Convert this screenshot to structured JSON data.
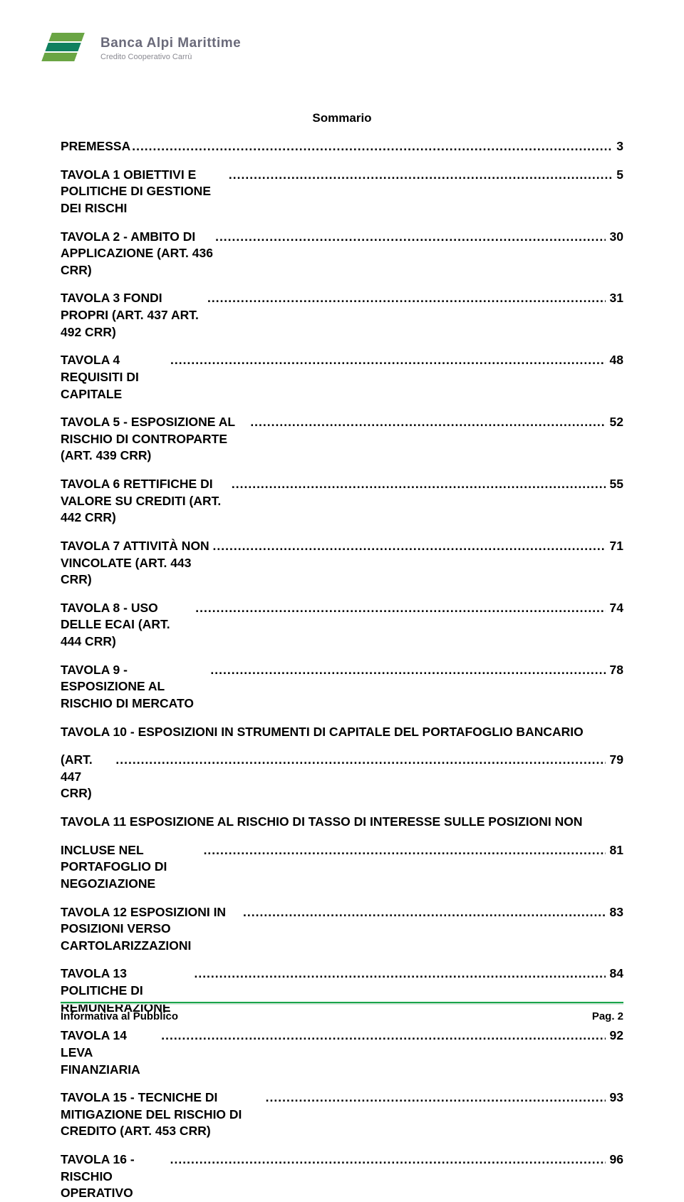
{
  "header": {
    "bank_name": "Banca Alpi Marittime",
    "bank_sub": "Credito Cooperativo Carrù",
    "logo_colors": {
      "green": "#6aa544",
      "teal": "#0f805f",
      "text": "#6a6a7a",
      "sub": "#8a8a92"
    }
  },
  "summary_title": "Sommario",
  "toc": [
    {
      "label": "PREMESSA",
      "page": "3",
      "kind": "single"
    },
    {
      "label": "TAVOLA 1 OBIETTIVI E POLITICHE DI GESTIONE DEI RISCHI",
      "page": "5",
      "kind": "single"
    },
    {
      "label": "TAVOLA 2 - AMBITO DI APPLICAZIONE (ART. 436 CRR)",
      "page": "30",
      "kind": "single"
    },
    {
      "label": "TAVOLA 3 FONDI PROPRI (ART. 437 ART. 492 CRR)",
      "page": "31",
      "kind": "single"
    },
    {
      "label": "TAVOLA 4 REQUISITI DI CAPITALE",
      "page": "48",
      "kind": "single"
    },
    {
      "label": "TAVOLA 5 - ESPOSIZIONE AL RISCHIO DI CONTROPARTE (ART. 439 CRR)",
      "page": "52",
      "kind": "single"
    },
    {
      "label": "TAVOLA 6 RETTIFICHE DI VALORE SU CREDITI (ART. 442 CRR)",
      "page": "55",
      "kind": "single"
    },
    {
      "label": "TAVOLA 7 ATTIVITÀ NON VINCOLATE (ART. 443 CRR)",
      "page": "71",
      "kind": "single"
    },
    {
      "label": "TAVOLA 8 - USO DELLE ECAI (ART. 444 CRR)",
      "page": "74",
      "kind": "single"
    },
    {
      "label": "TAVOLA 9 - ESPOSIZIONE AL RISCHIO DI MERCATO",
      "page": "78",
      "kind": "single"
    },
    {
      "line1": "TAVOLA 10 - ESPOSIZIONI IN STRUMENTI DI CAPITALE DEL PORTAFOGLIO BANCARIO",
      "line2": "(ART. 447 CRR)",
      "page": "79",
      "kind": "multi"
    },
    {
      "line1": "TAVOLA 11 ESPOSIZIONE AL RISCHIO DI TASSO DI INTERESSE SULLE POSIZIONI NON",
      "line2": "INCLUSE NEL PORTAFOGLIO DI NEGOZIAZIONE",
      "page": "81",
      "kind": "multi"
    },
    {
      "label": "TAVOLA 12 ESPOSIZIONI IN POSIZIONI VERSO CARTOLARIZZAZIONI",
      "page": "83",
      "kind": "single"
    },
    {
      "label": "TAVOLA 13 POLITICHE DI REMUNERAZIONE",
      "page": "84",
      "kind": "single"
    },
    {
      "label": "TAVOLA 14 LEVA FINANZIARIA",
      "page": "92",
      "kind": "single"
    },
    {
      "label": "TAVOLA 15 - TECNICHE DI MITIGAZIONE DEL RISCHIO DI CREDITO (ART. 453 CRR)",
      "page": "93",
      "kind": "single"
    },
    {
      "label": "TAVOLA 16 - RISCHIO OPERATIVO",
      "page": "96",
      "kind": "single"
    }
  ],
  "footer": {
    "left": "Informativa al Pubblico",
    "right": "Pag. 2",
    "rule_color": "#19a44a",
    "rule_shadow": "#d0e8d8"
  }
}
